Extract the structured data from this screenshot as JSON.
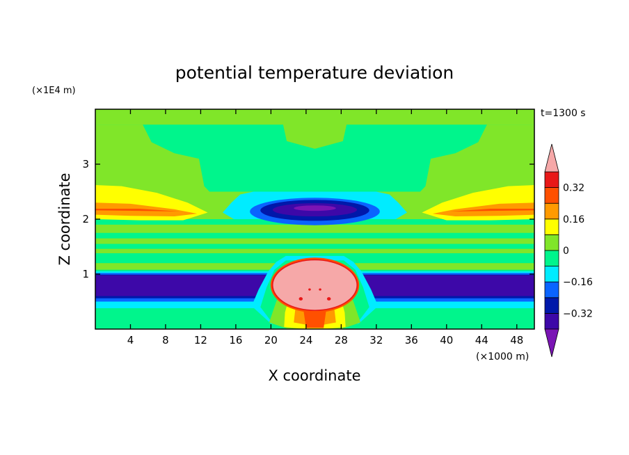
{
  "chart_data": {
    "type": "heatmap",
    "title": "potential temperature deviation",
    "time_label": "t=1300 s",
    "xlabel": "X coordinate",
    "ylabel": "Z coordinate",
    "x_unit": "(×1000 m)",
    "y_unit": "(×1E4 m)",
    "xlim": [
      0,
      50
    ],
    "ylim": [
      0,
      4
    ],
    "x_ticks": [
      4,
      8,
      12,
      16,
      20,
      24,
      28,
      32,
      36,
      40,
      44,
      48
    ],
    "y_ticks": [
      1,
      2,
      3
    ],
    "colorbar": {
      "tick_labels": [
        "0.32",
        "0.16",
        "0",
        "−0.16",
        "−0.32"
      ],
      "tick_values": [
        0.32,
        0.16,
        0,
        -0.16,
        -0.32
      ],
      "levels": [
        -0.4,
        -0.32,
        -0.24,
        -0.16,
        -0.08,
        0,
        0.08,
        0.16,
        0.24,
        0.32,
        0.4
      ],
      "colors": [
        "#3d08a8",
        "#0018aa",
        "#0a64ff",
        "#00ecff",
        "#00f58c",
        "#80e629",
        "#ffff00",
        "#ff9a00",
        "#ff5000",
        "#e81818"
      ],
      "under_color": "#7a14b4",
      "over_color": "#f6a8a8"
    }
  }
}
